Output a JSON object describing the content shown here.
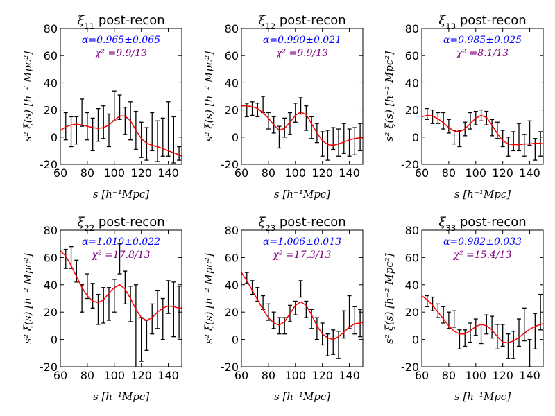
{
  "chart_data": [
    {
      "type": "line",
      "title": "ξ11 post-recon",
      "title_sym": "ξ",
      "title_sub": "11",
      "title_rest": " post-recon",
      "alpha_text": "α=0.965±0.065",
      "chi2_text": "χ² =9.9/13",
      "xlabel": "s [h⁻¹Mpc]",
      "ylabel": "s² ξ(s) [h⁻² Mpc²]",
      "xlim": [
        60,
        150
      ],
      "ylim": [
        -20,
        80
      ],
      "xticks": [
        60,
        80,
        100,
        120,
        140
      ],
      "yticks": [
        -20,
        0,
        20,
        40,
        60,
        80
      ],
      "points": [
        {
          "x": 64,
          "y": 8,
          "err": 10
        },
        {
          "x": 68,
          "y": 4,
          "err": 11
        },
        {
          "x": 72,
          "y": 5,
          "err": 10
        },
        {
          "x": 76,
          "y": 18,
          "err": 10
        },
        {
          "x": 80,
          "y": 8,
          "err": 10
        },
        {
          "x": 84,
          "y": 2,
          "err": 12
        },
        {
          "x": 88,
          "y": 9,
          "err": 12
        },
        {
          "x": 92,
          "y": 11,
          "err": 12
        },
        {
          "x": 96,
          "y": 5,
          "err": 12
        },
        {
          "x": 100,
          "y": 23,
          "err": 11
        },
        {
          "x": 104,
          "y": 22,
          "err": 9
        },
        {
          "x": 108,
          "y": 12,
          "err": 10
        },
        {
          "x": 112,
          "y": 12,
          "err": 14
        },
        {
          "x": 116,
          "y": 5,
          "err": 14
        },
        {
          "x": 120,
          "y": -2,
          "err": 13
        },
        {
          "x": 124,
          "y": -5,
          "err": 12
        },
        {
          "x": 128,
          "y": 4,
          "err": 14
        },
        {
          "x": 132,
          "y": -3,
          "err": 15
        },
        {
          "x": 136,
          "y": 0,
          "err": 14
        },
        {
          "x": 140,
          "y": 6,
          "err": 20
        },
        {
          "x": 144,
          "y": -2,
          "err": 17
        },
        {
          "x": 148,
          "y": -12,
          "err": 5
        }
      ],
      "model": {
        "x": [
          60,
          64,
          68,
          72,
          76,
          80,
          84,
          88,
          92,
          96,
          100,
          104,
          108,
          112,
          116,
          120,
          124,
          128,
          132,
          136,
          140,
          144,
          148,
          150
        ],
        "y": [
          5,
          7.5,
          9,
          9.5,
          9,
          8,
          7,
          6.5,
          7,
          9,
          12.5,
          15.5,
          15.5,
          12,
          5,
          -1,
          -4.5,
          -6,
          -7,
          -8.5,
          -10,
          -11.5,
          -13,
          -14
        ]
      }
    },
    {
      "type": "line",
      "title": "ξ12 post-recon",
      "title_sym": "ξ",
      "title_sub": "12",
      "title_rest": " post-recon",
      "alpha_text": "α=0.990±0.021",
      "chi2_text": "χ² =9.9/13",
      "xlabel": "s [h⁻¹Mpc]",
      "ylabel": "s² ξ(s) [h⁻² Mpc²]",
      "xlim": [
        60,
        150
      ],
      "ylim": [
        -20,
        80
      ],
      "xticks": [
        60,
        80,
        100,
        120,
        140
      ],
      "yticks": [
        -20,
        0,
        20,
        40,
        60,
        80
      ],
      "points": [
        {
          "x": 64,
          "y": 20,
          "err": 5
        },
        {
          "x": 68,
          "y": 21,
          "err": 5
        },
        {
          "x": 72,
          "y": 20,
          "err": 5
        },
        {
          "x": 76,
          "y": 24,
          "err": 6
        },
        {
          "x": 80,
          "y": 12,
          "err": 6
        },
        {
          "x": 84,
          "y": 9,
          "err": 6
        },
        {
          "x": 88,
          "y": 0,
          "err": 8
        },
        {
          "x": 92,
          "y": 7,
          "err": 7
        },
        {
          "x": 96,
          "y": 10,
          "err": 8
        },
        {
          "x": 100,
          "y": 18,
          "err": 7
        },
        {
          "x": 104,
          "y": 23,
          "err": 6
        },
        {
          "x": 108,
          "y": 14,
          "err": 9
        },
        {
          "x": 112,
          "y": 7,
          "err": 8
        },
        {
          "x": 116,
          "y": 3,
          "err": 7
        },
        {
          "x": 120,
          "y": -5,
          "err": 9
        },
        {
          "x": 124,
          "y": -6,
          "err": 11
        },
        {
          "x": 128,
          "y": -1,
          "err": 8
        },
        {
          "x": 132,
          "y": -4,
          "err": 10
        },
        {
          "x": 136,
          "y": -1,
          "err": 11
        },
        {
          "x": 140,
          "y": -4,
          "err": 10
        },
        {
          "x": 144,
          "y": -3,
          "err": 10
        },
        {
          "x": 148,
          "y": 0,
          "err": 10
        }
      ],
      "model": {
        "x": [
          60,
          64,
          68,
          72,
          76,
          80,
          84,
          88,
          92,
          96,
          100,
          104,
          108,
          112,
          116,
          120,
          124,
          128,
          132,
          136,
          140,
          144,
          148,
          150
        ],
        "y": [
          23,
          23,
          22.5,
          21,
          18,
          14,
          9,
          5,
          6.5,
          11,
          16,
          18.5,
          16.5,
          10,
          3,
          -2.5,
          -5.5,
          -6,
          -5,
          -3.5,
          -2,
          -1,
          -0.5,
          -0.5
        ]
      }
    },
    {
      "type": "line",
      "title": "ξ13 post-recon",
      "title_sym": "ξ",
      "title_sub": "13",
      "title_rest": " post-recon",
      "alpha_text": "α=0.985±0.025",
      "chi2_text": "χ² =8.1/13",
      "xlabel": "s [h⁻¹Mpc]",
      "ylabel": "s² ξ(s) [h⁻² Mpc²]",
      "xlim": [
        60,
        150
      ],
      "ylim": [
        -20,
        80
      ],
      "xticks": [
        60,
        80,
        100,
        120,
        140
      ],
      "yticks": [
        -20,
        0,
        20,
        40,
        60,
        80
      ],
      "points": [
        {
          "x": 64,
          "y": 17,
          "err": 4
        },
        {
          "x": 68,
          "y": 15,
          "err": 5
        },
        {
          "x": 72,
          "y": 14,
          "err": 4
        },
        {
          "x": 76,
          "y": 12,
          "err": 6
        },
        {
          "x": 80,
          "y": 8,
          "err": 5
        },
        {
          "x": 84,
          "y": 0,
          "err": 5
        },
        {
          "x": 88,
          "y": -1,
          "err": 6
        },
        {
          "x": 92,
          "y": 6,
          "err": 5
        },
        {
          "x": 96,
          "y": 12,
          "err": 6
        },
        {
          "x": 100,
          "y": 14,
          "err": 5
        },
        {
          "x": 104,
          "y": 16,
          "err": 4
        },
        {
          "x": 108,
          "y": 14,
          "err": 5
        },
        {
          "x": 112,
          "y": 7,
          "err": 6
        },
        {
          "x": 116,
          "y": 5,
          "err": 6
        },
        {
          "x": 120,
          "y": -1,
          "err": 6
        },
        {
          "x": 124,
          "y": -7,
          "err": 7
        },
        {
          "x": 128,
          "y": -3,
          "err": 7
        },
        {
          "x": 132,
          "y": 0,
          "err": 10
        },
        {
          "x": 136,
          "y": -6,
          "err": 8
        },
        {
          "x": 140,
          "y": 3,
          "err": 9
        },
        {
          "x": 144,
          "y": -9,
          "err": 8
        },
        {
          "x": 148,
          "y": -5,
          "err": 9
        }
      ],
      "model": {
        "x": [
          60,
          64,
          68,
          72,
          76,
          80,
          84,
          88,
          92,
          96,
          100,
          104,
          108,
          112,
          116,
          120,
          124,
          128,
          132,
          136,
          140,
          144,
          148,
          150
        ],
        "y": [
          15,
          16,
          15.5,
          13.5,
          10.5,
          7,
          4.5,
          4,
          6,
          10,
          14,
          16,
          14.5,
          9,
          2.5,
          -2.5,
          -5,
          -5.5,
          -5.5,
          -5,
          -5,
          -4.5,
          -4.5,
          -5
        ]
      }
    },
    {
      "type": "line",
      "title": "ξ22 post-recon",
      "title_sym": "ξ",
      "title_sub": "22",
      "title_rest": " post-recon",
      "alpha_text": "α=1.010±0.022",
      "chi2_text": "χ² =17.8/13",
      "xlabel": "s [h⁻¹Mpc]",
      "ylabel": "s² ξ(s) [h⁻² Mpc²]",
      "xlim": [
        60,
        150
      ],
      "ylim": [
        -20,
        80
      ],
      "xticks": [
        60,
        80,
        100,
        120,
        140
      ],
      "yticks": [
        -20,
        0,
        20,
        40,
        60,
        80
      ],
      "points": [
        {
          "x": 64,
          "y": 59,
          "err": 7
        },
        {
          "x": 68,
          "y": 60,
          "err": 8
        },
        {
          "x": 72,
          "y": 50,
          "err": 8
        },
        {
          "x": 76,
          "y": 30,
          "err": 10
        },
        {
          "x": 80,
          "y": 39,
          "err": 9
        },
        {
          "x": 84,
          "y": 32,
          "err": 9
        },
        {
          "x": 88,
          "y": 22,
          "err": 11
        },
        {
          "x": 92,
          "y": 25,
          "err": 13
        },
        {
          "x": 96,
          "y": 26,
          "err": 12
        },
        {
          "x": 100,
          "y": 32,
          "err": 12
        },
        {
          "x": 104,
          "y": 59,
          "err": 11
        },
        {
          "x": 108,
          "y": 38,
          "err": 12
        },
        {
          "x": 112,
          "y": 26,
          "err": 13
        },
        {
          "x": 116,
          "y": 9,
          "err": 31
        },
        {
          "x": 120,
          "y": 0,
          "err": 16
        },
        {
          "x": 124,
          "y": 3,
          "err": 11
        },
        {
          "x": 128,
          "y": 15,
          "err": 11
        },
        {
          "x": 132,
          "y": 22,
          "err": 14
        },
        {
          "x": 136,
          "y": 15,
          "err": 15
        },
        {
          "x": 140,
          "y": 31,
          "err": 12
        },
        {
          "x": 144,
          "y": 22,
          "err": 20
        },
        {
          "x": 148,
          "y": 20,
          "err": 19
        }
      ],
      "model": {
        "x": [
          60,
          64,
          68,
          72,
          76,
          80,
          84,
          88,
          92,
          96,
          100,
          104,
          108,
          112,
          116,
          120,
          124,
          128,
          132,
          136,
          140,
          144,
          148,
          150
        ],
        "y": [
          65,
          61,
          54,
          46,
          38,
          32,
          28,
          27,
          29,
          34,
          38,
          40,
          37,
          30,
          22,
          16,
          14,
          16,
          20,
          23,
          24.5,
          24,
          23,
          23
        ]
      }
    },
    {
      "type": "line",
      "title": "ξ23 post-recon",
      "title_sym": "ξ",
      "title_sub": "23",
      "title_rest": " post-recon",
      "alpha_text": "α=1.006±0.013",
      "chi2_text": "χ² =17.3/13",
      "xlabel": "s [h⁻¹Mpc]",
      "ylabel": "s² ξ(s) [h⁻² Mpc²]",
      "xlim": [
        60,
        150
      ],
      "ylim": [
        -20,
        80
      ],
      "xticks": [
        60,
        80,
        100,
        120,
        140
      ],
      "yticks": [
        -20,
        0,
        20,
        40,
        60,
        80
      ],
      "points": [
        {
          "x": 64,
          "y": 45,
          "err": 4
        },
        {
          "x": 68,
          "y": 38,
          "err": 5
        },
        {
          "x": 72,
          "y": 33,
          "err": 5
        },
        {
          "x": 76,
          "y": 27,
          "err": 5
        },
        {
          "x": 80,
          "y": 20,
          "err": 6
        },
        {
          "x": 84,
          "y": 14,
          "err": 6
        },
        {
          "x": 88,
          "y": 10,
          "err": 6
        },
        {
          "x": 92,
          "y": 10,
          "err": 6
        },
        {
          "x": 96,
          "y": 19,
          "err": 6
        },
        {
          "x": 100,
          "y": 23,
          "err": 5
        },
        {
          "x": 104,
          "y": 37,
          "err": 6
        },
        {
          "x": 108,
          "y": 22,
          "err": 6
        },
        {
          "x": 112,
          "y": 15,
          "err": 7
        },
        {
          "x": 116,
          "y": 8,
          "err": 8
        },
        {
          "x": 120,
          "y": 4,
          "err": 8
        },
        {
          "x": 124,
          "y": -4,
          "err": 8
        },
        {
          "x": 128,
          "y": -2,
          "err": 9
        },
        {
          "x": 132,
          "y": -4,
          "err": 10
        },
        {
          "x": 136,
          "y": 11,
          "err": 10
        },
        {
          "x": 140,
          "y": 20,
          "err": 12
        },
        {
          "x": 144,
          "y": 14,
          "err": 10
        },
        {
          "x": 148,
          "y": 12,
          "err": 10
        }
      ],
      "model": {
        "x": [
          60,
          64,
          68,
          72,
          76,
          80,
          84,
          88,
          92,
          96,
          100,
          104,
          108,
          112,
          116,
          120,
          124,
          128,
          132,
          136,
          140,
          144,
          148,
          150
        ],
        "y": [
          49,
          43,
          36,
          29,
          22,
          16,
          12,
          10.5,
          13,
          19,
          25,
          27.5,
          25,
          18,
          10,
          4,
          1,
          0,
          2,
          5.5,
          9,
          11.5,
          12,
          12.5
        ]
      }
    },
    {
      "type": "line",
      "title": "ξ33 post-recon",
      "title_sym": "ξ",
      "title_sub": "33",
      "title_rest": " post-recon",
      "alpha_text": "α=0.982±0.033",
      "chi2_text": "χ² =15.4/13",
      "xlabel": "s [h⁻¹Mpc]",
      "ylabel": "s² ξ(s) [h⁻² Mpc²]",
      "xlim": [
        60,
        150
      ],
      "ylim": [
        -20,
        80
      ],
      "xticks": [
        60,
        80,
        100,
        120,
        140
      ],
      "yticks": [
        -20,
        0,
        20,
        40,
        60,
        80
      ],
      "points": [
        {
          "x": 64,
          "y": 28,
          "err": 4
        },
        {
          "x": 68,
          "y": 26,
          "err": 5
        },
        {
          "x": 72,
          "y": 21,
          "err": 5
        },
        {
          "x": 76,
          "y": 18,
          "err": 6
        },
        {
          "x": 80,
          "y": 14,
          "err": 6
        },
        {
          "x": 84,
          "y": 15,
          "err": 6
        },
        {
          "x": 88,
          "y": 0,
          "err": 7
        },
        {
          "x": 92,
          "y": 1,
          "err": 6
        },
        {
          "x": 96,
          "y": 5,
          "err": 7
        },
        {
          "x": 100,
          "y": 9,
          "err": 6
        },
        {
          "x": 104,
          "y": 4,
          "err": 7
        },
        {
          "x": 108,
          "y": 11,
          "err": 7
        },
        {
          "x": 112,
          "y": 9,
          "err": 8
        },
        {
          "x": 116,
          "y": 2,
          "err": 9
        },
        {
          "x": 120,
          "y": 3,
          "err": 8
        },
        {
          "x": 124,
          "y": -5,
          "err": 9
        },
        {
          "x": 128,
          "y": -4,
          "err": 10
        },
        {
          "x": 132,
          "y": 5,
          "err": 10
        },
        {
          "x": 136,
          "y": 11,
          "err": 12
        },
        {
          "x": 140,
          "y": -10,
          "err": 10
        },
        {
          "x": 144,
          "y": 6,
          "err": 13
        },
        {
          "x": 148,
          "y": 20,
          "err": 13
        }
      ],
      "model": {
        "x": [
          60,
          64,
          68,
          72,
          76,
          80,
          84,
          88,
          92,
          96,
          100,
          104,
          108,
          112,
          116,
          120,
          124,
          128,
          132,
          136,
          140,
          144,
          148,
          150
        ],
        "y": [
          32,
          29,
          25,
          20,
          15,
          10,
          6,
          4,
          4,
          6.5,
          9.5,
          11,
          10,
          7,
          2,
          -2,
          -2.5,
          -1,
          1.5,
          4.5,
          7.5,
          9.5,
          11,
          11.5
        ]
      }
    }
  ],
  "colors": {
    "model_line": "#ff0000",
    "error_bars": "#000000",
    "alpha_text": "#0000ff",
    "chi2_text": "#800080"
  }
}
